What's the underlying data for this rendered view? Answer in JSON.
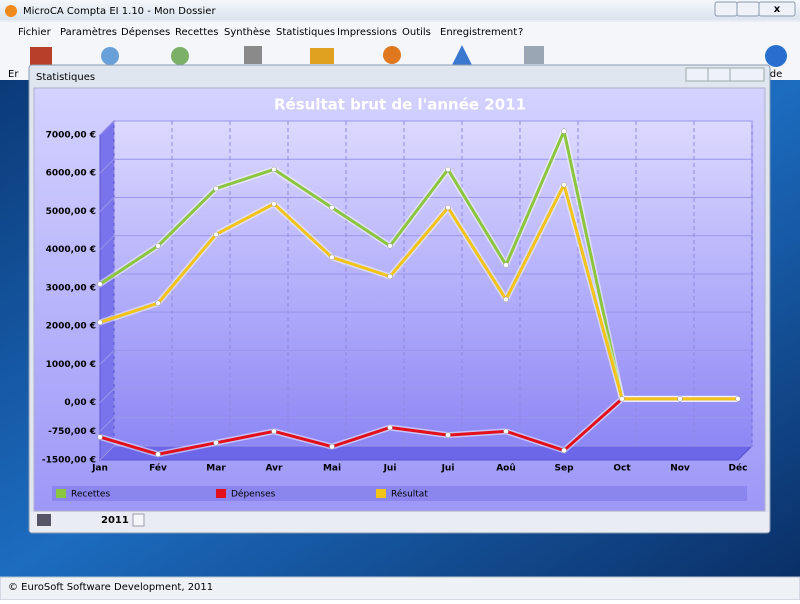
{
  "window": {
    "title": "MicroCA Compta EI 1.10 - Mon Dossier",
    "menu": [
      "Fichier",
      "Paramètres",
      "Dépenses",
      "Recettes",
      "Synthèse",
      "Statistiques",
      "Impressions",
      "Outils",
      "Enregistrement",
      "?"
    ],
    "toolbar_left": "Er",
    "toolbar_right": "ide"
  },
  "child_window": {
    "title": "Statistiques",
    "year": "2011"
  },
  "status_bar": "© EuroSoft Software Development, 2011",
  "chart_data": {
    "type": "line",
    "title": "Résultat brut de l'année 2011",
    "categories": [
      "Jan",
      "Fév",
      "Mar",
      "Avr",
      "Mai",
      "Jui",
      "Jui",
      "Aoû",
      "Sep",
      "Oct",
      "Nov",
      "Déc"
    ],
    "series": [
      {
        "name": "Recettes",
        "color": "#8cc63e",
        "values": [
          3100,
          4100,
          5600,
          6100,
          5100,
          4100,
          6100,
          3600,
          7100,
          100,
          100,
          100
        ]
      },
      {
        "name": "Dépenses",
        "color": "#e3101c",
        "values": [
          -900,
          -1350,
          -1050,
          -750,
          -1150,
          -650,
          -850,
          -750,
          -1250,
          100,
          100,
          100
        ]
      },
      {
        "name": "Résultat",
        "color": "#f2c318",
        "values": [
          2100,
          2600,
          4400,
          5200,
          3800,
          3300,
          5100,
          2700,
          5700,
          100,
          100,
          100
        ]
      }
    ],
    "ylim": [
      -1500,
      7000
    ],
    "yticks": [
      {
        "value": -1500,
        "label": "-1500,00 €"
      },
      {
        "value": -750,
        "label": "-750,00 €"
      },
      {
        "value": 0,
        "label": "0,00 €"
      },
      {
        "value": 1000,
        "label": "1000,00 €"
      },
      {
        "value": 2000,
        "label": "2000,00 €"
      },
      {
        "value": 3000,
        "label": "3000,00 €"
      },
      {
        "value": 4000,
        "label": "4000,00 €"
      },
      {
        "value": 5000,
        "label": "5000,00 €"
      },
      {
        "value": 6000,
        "label": "6000,00 €"
      },
      {
        "value": 7000,
        "label": "7000,00 €"
      }
    ],
    "grid": true,
    "legend": "bottom"
  }
}
